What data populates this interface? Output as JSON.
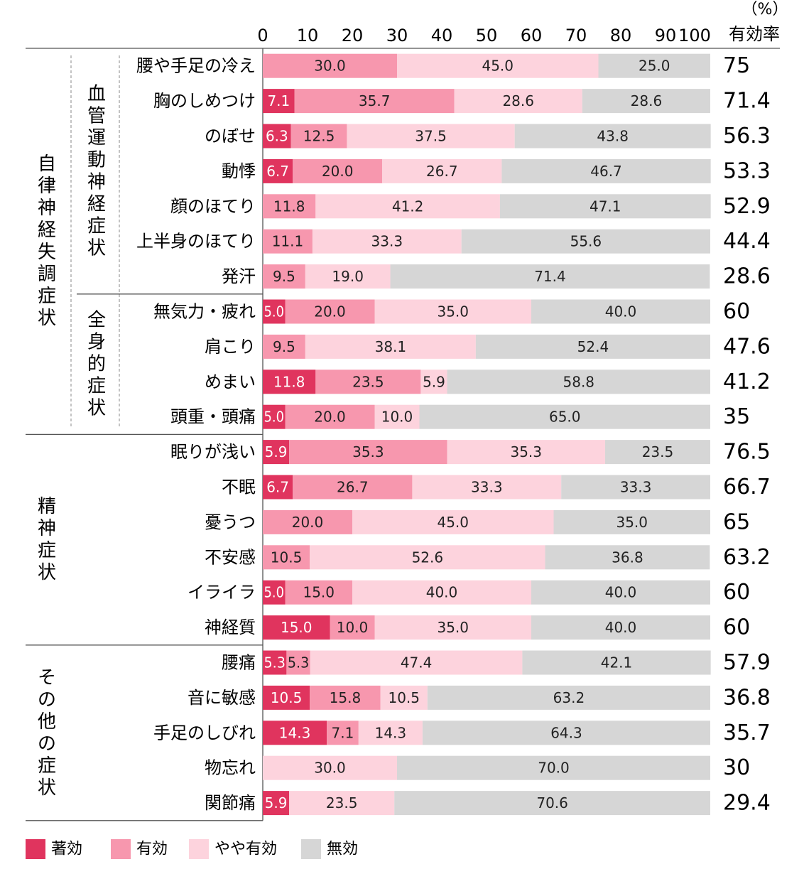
{
  "chart_data": {
    "type": "bar",
    "orientation": "horizontal",
    "stacked": true,
    "unit_label": "（%）",
    "rate_header": "有効率",
    "xlim": [
      0,
      100
    ],
    "ticks": [
      0,
      10,
      20,
      30,
      40,
      50,
      60,
      70,
      80,
      90,
      100
    ],
    "legend_position": "bottom-left",
    "series": [
      {
        "name": "著効",
        "color": "#e0345e",
        "text_color": "#ffffff"
      },
      {
        "name": "有効",
        "color": "#f797ae",
        "text_color": "#222222"
      },
      {
        "name": "やや有効",
        "color": "#fdd3dd",
        "text_color": "#222222"
      },
      {
        "name": "無効",
        "color": "#d6d6d6",
        "text_color": "#222222"
      }
    ],
    "groups": [
      {
        "name": "自律神経失調症状",
        "rows": [
          0,
          10
        ],
        "subgroups": [
          {
            "name": "血管運動神経症状",
            "rows": [
              0,
              6
            ]
          },
          {
            "name": "全身的症状",
            "rows": [
              7,
              10
            ]
          }
        ]
      },
      {
        "name": "精神症状",
        "rows": [
          11,
          16
        ]
      },
      {
        "name": "その他の症状",
        "rows": [
          17,
          21
        ]
      }
    ],
    "rows": [
      {
        "label": "腰や手足の冷え",
        "values": [
          0,
          30.0,
          45.0,
          25.0
        ],
        "labels": [
          "",
          "30.0",
          "45.0",
          "25.0"
        ],
        "rate": "75"
      },
      {
        "label": "胸のしめつけ",
        "values": [
          7.1,
          35.7,
          28.6,
          28.6
        ],
        "labels": [
          "7.1",
          "35.7",
          "28.6",
          "28.6"
        ],
        "rate": "71.4"
      },
      {
        "label": "のぼせ",
        "values": [
          6.3,
          12.5,
          37.5,
          43.8
        ],
        "labels": [
          "6.3",
          "12.5",
          "37.5",
          "43.8"
        ],
        "rate": "56.3"
      },
      {
        "label": "動悸",
        "values": [
          6.7,
          20.0,
          26.7,
          46.7
        ],
        "labels": [
          "6.7",
          "20.0",
          "26.7",
          "46.7"
        ],
        "rate": "53.3"
      },
      {
        "label": "顔のほてり",
        "values": [
          0,
          11.8,
          41.2,
          47.1
        ],
        "labels": [
          "",
          "11.8",
          "41.2",
          "47.1"
        ],
        "rate": "52.9"
      },
      {
        "label": "上半身のほてり",
        "values": [
          0,
          11.1,
          33.3,
          55.6
        ],
        "labels": [
          "",
          "11.1",
          "33.3",
          "55.6"
        ],
        "rate": "44.4"
      },
      {
        "label": "発汗",
        "values": [
          0,
          9.5,
          19.0,
          71.4
        ],
        "labels": [
          "",
          "9.5",
          "19.0",
          "71.4"
        ],
        "rate": "28.6"
      },
      {
        "label": "無気力・疲れ",
        "values": [
          5.0,
          20.0,
          35.0,
          40.0
        ],
        "labels": [
          "5.0",
          "20.0",
          "35.0",
          "40.0"
        ],
        "rate": "60"
      },
      {
        "label": "肩こり",
        "values": [
          0,
          9.5,
          38.1,
          52.4
        ],
        "labels": [
          "",
          "9.5",
          "38.1",
          "52.4"
        ],
        "rate": "47.6"
      },
      {
        "label": "めまい",
        "values": [
          11.8,
          23.5,
          5.9,
          58.8
        ],
        "labels": [
          "11.8",
          "23.5",
          "5.9",
          "58.8"
        ],
        "rate": "41.2"
      },
      {
        "label": "頭重・頭痛",
        "values": [
          5.0,
          20.0,
          10.0,
          65.0
        ],
        "labels": [
          "5.0",
          "20.0",
          "10.0",
          "65.0"
        ],
        "rate": "35"
      },
      {
        "label": "眠りが浅い",
        "values": [
          5.9,
          35.3,
          35.3,
          23.5
        ],
        "labels": [
          "5.9",
          "35.3",
          "35.3",
          "23.5"
        ],
        "rate": "76.5"
      },
      {
        "label": "不眠",
        "values": [
          6.7,
          26.7,
          33.3,
          33.3
        ],
        "labels": [
          "6.7",
          "26.7",
          "33.3",
          "33.3"
        ],
        "rate": "66.7"
      },
      {
        "label": "憂うつ",
        "values": [
          0,
          20.0,
          45.0,
          35.0
        ],
        "labels": [
          "",
          "20.0",
          "45.0",
          "35.0"
        ],
        "rate": "65"
      },
      {
        "label": "不安感",
        "values": [
          0,
          10.5,
          52.6,
          36.8
        ],
        "labels": [
          "",
          "10.5",
          "52.6",
          "36.8"
        ],
        "rate": "63.2"
      },
      {
        "label": "イライラ",
        "values": [
          5.0,
          15.0,
          40.0,
          40.0
        ],
        "labels": [
          "5.0",
          "15.0",
          "40.0",
          "40.0"
        ],
        "rate": "60"
      },
      {
        "label": "神経質",
        "values": [
          15.0,
          10.0,
          35.0,
          40.0
        ],
        "labels": [
          "15.0",
          "10.0",
          "35.0",
          "40.0"
        ],
        "rate": "60"
      },
      {
        "label": "腰痛",
        "values": [
          5.3,
          5.3,
          47.4,
          42.1
        ],
        "labels": [
          "5.3",
          "5.3",
          "47.4",
          "42.1"
        ],
        "rate": "57.9"
      },
      {
        "label": "音に敏感",
        "values": [
          10.5,
          15.8,
          10.5,
          63.2
        ],
        "labels": [
          "10.5",
          "15.8",
          "10.5",
          "63.2"
        ],
        "rate": "36.8"
      },
      {
        "label": "手足のしびれ",
        "values": [
          14.3,
          7.1,
          14.3,
          64.3
        ],
        "labels": [
          "14.3",
          "7.1",
          "14.3",
          "64.3"
        ],
        "rate": "35.7"
      },
      {
        "label": "物忘れ",
        "values": [
          0,
          0,
          30.0,
          70.0
        ],
        "labels": [
          "",
          "",
          "30.0",
          "70.0"
        ],
        "rate": "30"
      },
      {
        "label": "関節痛",
        "values": [
          5.9,
          0,
          23.5,
          70.6
        ],
        "labels": [
          "5.9",
          "",
          "23.5",
          "70.6"
        ],
        "rate": "29.4"
      }
    ]
  }
}
